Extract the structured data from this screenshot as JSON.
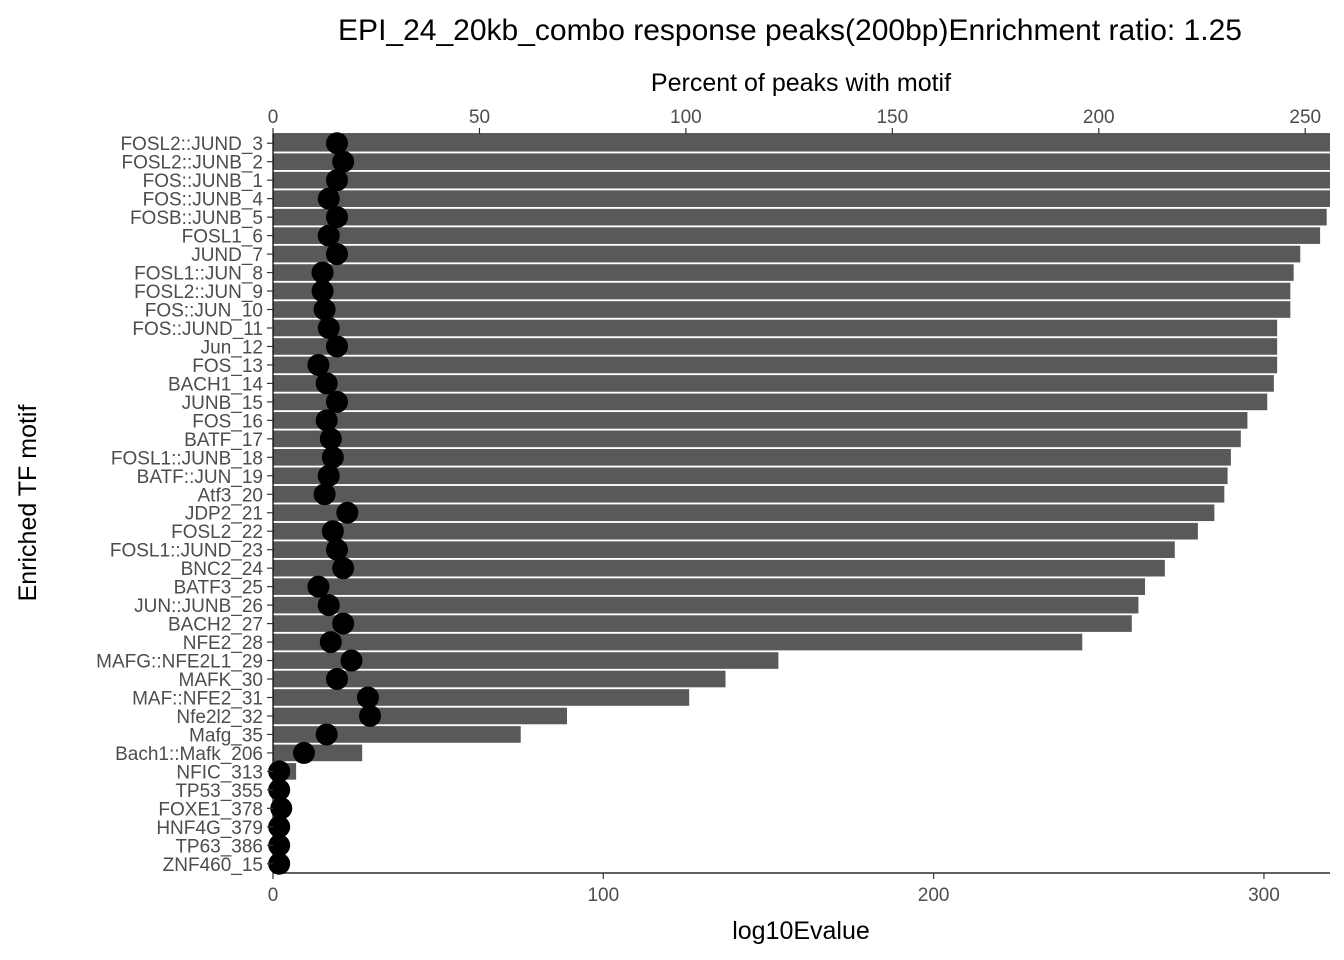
{
  "chart_data": {
    "type": "bar",
    "title": "EPI_24_20kb_combo response peaks(200bp)Enrichment ratio: 1.25",
    "xlabel": "log10Evalue",
    "x2label": "Percent of peaks with motif",
    "ylabel": "Enriched TF motif",
    "xlim": [
      0,
      320
    ],
    "x2lim": [
      0,
      256
    ],
    "x_ticks": [
      0,
      100,
      200,
      300
    ],
    "x2_ticks": [
      0,
      50,
      100,
      150,
      200,
      250
    ],
    "grid": false,
    "colors": {
      "bar": "#595959",
      "point": "#000000"
    },
    "categories": [
      "FOSL2::JUND_3",
      "FOSL2::JUNB_2",
      "FOS::JUNB_1",
      "FOS::JUNB_4",
      "FOSB::JUNB_5",
      "FOSL1_6",
      "JUND_7",
      "FOSL1::JUN_8",
      "FOSL2::JUN_9",
      "FOS::JUN_10",
      "FOS::JUND_11",
      "Jun_12",
      "FOS_13",
      "BACH1_14",
      "JUNB_15",
      "FOS_16",
      "BATF_17",
      "FOSL1::JUNB_18",
      "BATF::JUN_19",
      "Atf3_20",
      "JDP2_21",
      "FOSL2_22",
      "FOSL1::JUND_23",
      "BNC2_24",
      "BATF3_25",
      "JUN::JUNB_26",
      "BACH2_27",
      "NFE2_28",
      "MAFG::NFE2L1_29",
      "MAFK_30",
      "MAF::NFE2_31",
      "Nfe2l2_32",
      "Mafg_35",
      "Bach1::Mafk_206",
      "NFIC_313",
      "TP53_355",
      "FOXE1_378",
      "HNF4G_379",
      "TP63_386",
      "ZNF460_15"
    ],
    "series": [
      {
        "name": "log10Evalue",
        "mark": "bar",
        "axis": "bottom",
        "values": [
          321,
          321,
          321,
          321,
          319,
          317,
          311,
          309,
          308,
          308,
          304,
          304,
          304,
          303,
          301,
          295,
          293,
          290,
          289,
          288,
          285,
          280,
          273,
          270,
          264,
          262,
          260,
          245,
          153,
          137,
          126,
          89,
          75,
          27,
          7,
          0,
          0,
          0,
          0,
          0
        ]
      },
      {
        "name": "Percent of peaks with motif",
        "mark": "point",
        "axis": "top",
        "values": [
          15.5,
          17,
          15.5,
          13.5,
          15.5,
          13.5,
          15.5,
          12,
          12,
          12.5,
          13.5,
          15.5,
          11,
          13,
          15.5,
          13,
          14,
          14.5,
          13.5,
          12.5,
          18,
          14.5,
          15.5,
          17,
          11,
          13.5,
          17,
          14,
          19,
          15.5,
          23,
          23.5,
          13,
          7.5,
          1.5,
          1.5,
          2,
          1.5,
          1.5,
          1.5
        ]
      }
    ]
  }
}
